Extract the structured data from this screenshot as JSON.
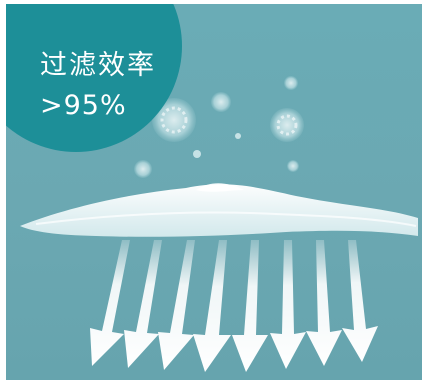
{
  "badge": {
    "title": "过滤效率",
    "value": ">95%"
  },
  "colors": {
    "background": "#6aacb6",
    "badge": "#1d8f98",
    "fabric": "#f2f7f8",
    "arrow": "#f4f9fa"
  },
  "icons": {
    "particles": "virus-particle-icon",
    "arrows": "down-arrow-icon",
    "layer": "filter-fabric-icon"
  }
}
